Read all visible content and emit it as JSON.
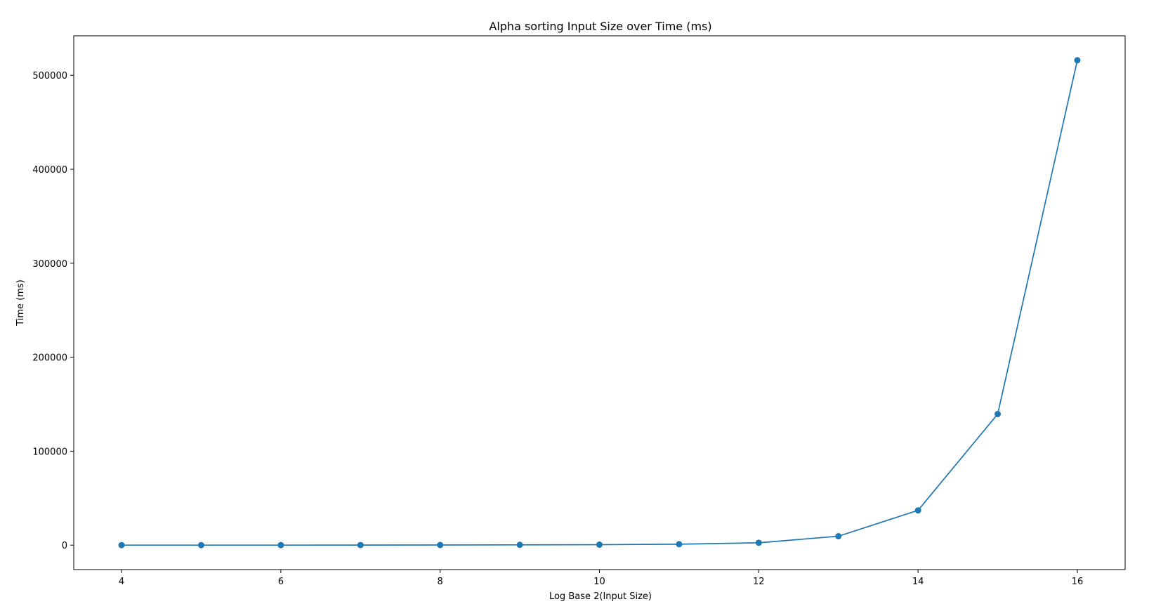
{
  "chart_data": {
    "type": "line",
    "title": "Alpha sorting Input Size over Time (ms)",
    "xlabel": "Log Base 2(Input Size)",
    "ylabel": "Time (ms)",
    "xlim": [
      3.4,
      16.6
    ],
    "ylim": [
      -26000,
      542000
    ],
    "x_ticks": [
      4,
      6,
      8,
      10,
      12,
      14,
      16
    ],
    "y_ticks": [
      0,
      100000,
      200000,
      300000,
      400000,
      500000
    ],
    "grid": false,
    "legend": "none",
    "series": [
      {
        "color": "#1f77b4",
        "marker": "circle",
        "x": [
          4,
          5,
          6,
          7,
          8,
          9,
          10,
          11,
          12,
          13,
          14,
          15,
          16
        ],
        "y": [
          0,
          10,
          30,
          70,
          150,
          300,
          500,
          1000,
          2500,
          9500,
          37000,
          139500,
          516000
        ]
      }
    ]
  }
}
